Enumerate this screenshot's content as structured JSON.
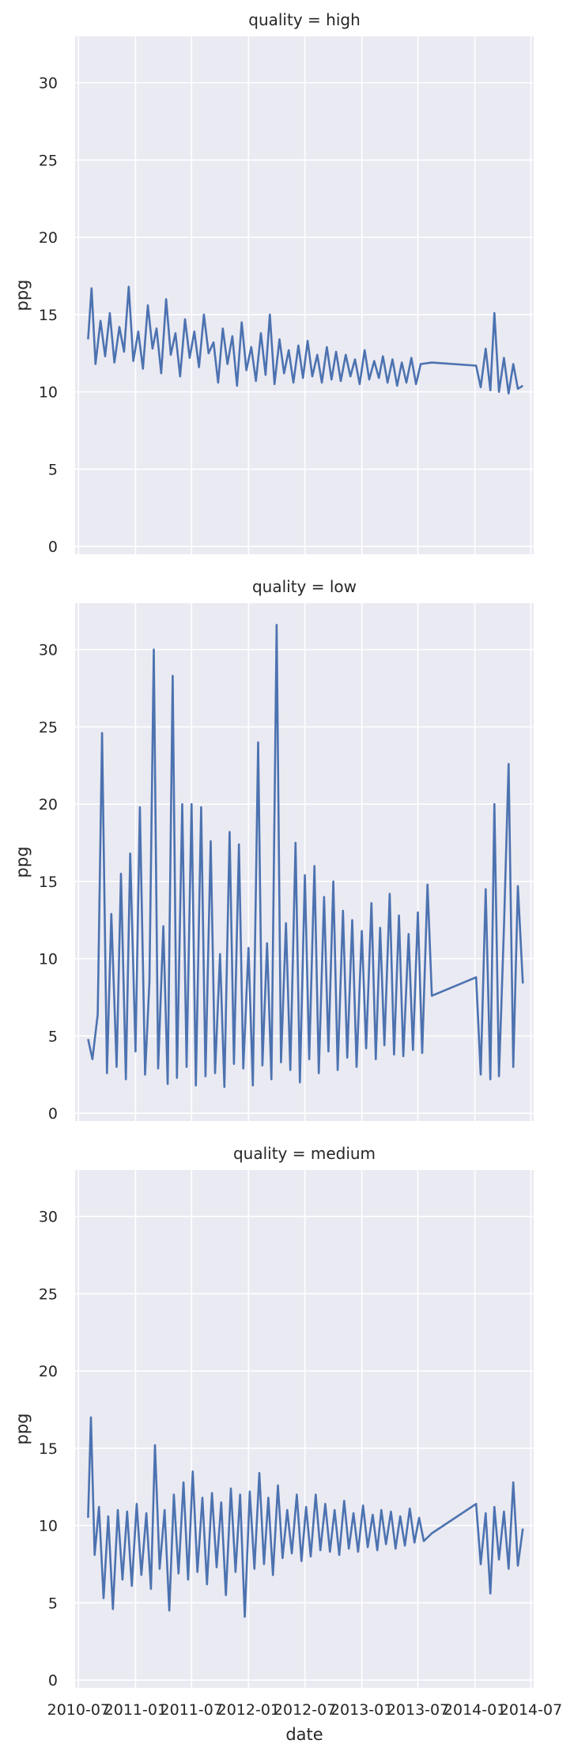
{
  "chart_data": [
    {
      "type": "line",
      "title": "quality = high",
      "xlabel": "",
      "ylabel": "ppg",
      "ylim": [
        -0.5,
        33
      ],
      "yticks": [
        0,
        5,
        10,
        15,
        20,
        25,
        30
      ],
      "xticks": [
        "2010-07",
        "2011-01",
        "2011-07",
        "2012-01",
        "2012-07",
        "2013-01",
        "2013-07",
        "2014-01",
        "2014-07"
      ],
      "x_range": [
        "2010-06-20",
        "2014-07-10"
      ],
      "color": "#4c72b0",
      "series": [
        {
          "x": [
            "2010-08-01",
            "2010-08-12",
            "2010-08-25",
            "2010-09-10",
            "2010-09-25",
            "2010-10-10",
            "2010-10-25",
            "2010-11-10",
            "2010-11-25",
            "2010-12-10",
            "2010-12-25",
            "2011-01-10",
            "2011-01-25",
            "2011-02-10",
            "2011-02-25",
            "2011-03-10",
            "2011-03-25",
            "2011-04-10",
            "2011-04-25",
            "2011-05-10",
            "2011-05-25",
            "2011-06-10",
            "2011-06-25",
            "2011-07-10",
            "2011-07-25",
            "2011-08-10",
            "2011-08-25",
            "2011-09-10",
            "2011-09-25",
            "2011-10-10",
            "2011-10-25",
            "2011-11-10",
            "2011-11-25",
            "2011-12-10",
            "2011-12-25",
            "2012-01-10",
            "2012-01-25",
            "2012-02-10",
            "2012-02-25",
            "2012-03-10",
            "2012-03-25",
            "2012-04-10",
            "2012-04-25",
            "2012-05-10",
            "2012-05-25",
            "2012-06-10",
            "2012-06-25",
            "2012-07-10",
            "2012-07-25",
            "2012-08-10",
            "2012-08-25",
            "2012-09-10",
            "2012-09-25",
            "2012-10-10",
            "2012-10-25",
            "2012-11-10",
            "2012-11-25",
            "2012-12-10",
            "2012-12-25",
            "2013-01-10",
            "2013-01-25",
            "2013-02-10",
            "2013-02-25",
            "2013-03-10",
            "2013-03-25",
            "2013-04-10",
            "2013-04-25",
            "2013-05-10",
            "2013-05-25",
            "2013-06-10",
            "2013-06-25",
            "2013-07-10",
            "2013-08-15",
            "2014-01-05",
            "2014-01-20",
            "2014-02-05",
            "2014-02-20",
            "2014-03-05",
            "2014-03-20",
            "2014-04-05",
            "2014-04-20",
            "2014-05-05",
            "2014-05-20",
            "2014-06-05"
          ],
          "y": [
            13.4,
            16.7,
            11.8,
            14.6,
            12.3,
            15.1,
            11.9,
            14.2,
            12.6,
            16.8,
            12.0,
            13.9,
            11.5,
            15.6,
            12.8,
            14.1,
            11.2,
            16.0,
            12.4,
            13.8,
            11.0,
            14.7,
            12.2,
            13.9,
            11.6,
            15.0,
            12.5,
            13.2,
            10.6,
            14.1,
            11.8,
            13.6,
            10.4,
            14.5,
            11.4,
            12.9,
            10.7,
            13.8,
            11.1,
            15.0,
            10.5,
            13.4,
            11.2,
            12.7,
            10.6,
            13.0,
            10.9,
            13.3,
            11.0,
            12.4,
            10.6,
            12.9,
            10.8,
            12.6,
            10.7,
            12.4,
            11.0,
            12.1,
            10.5,
            12.7,
            10.8,
            12.0,
            10.9,
            12.3,
            10.6,
            12.1,
            10.4,
            11.9,
            10.6,
            12.2,
            10.5,
            11.8,
            11.9,
            11.7,
            10.3,
            12.8,
            10.1,
            15.1,
            10.0,
            12.2,
            9.9,
            11.8,
            10.2,
            10.4
          ]
        }
      ]
    },
    {
      "type": "line",
      "title": "quality = low",
      "xlabel": "",
      "ylabel": "ppg",
      "ylim": [
        -0.5,
        33
      ],
      "yticks": [
        0,
        5,
        10,
        15,
        20,
        25,
        30
      ],
      "xticks": [
        "2010-07",
        "2011-01",
        "2011-07",
        "2012-01",
        "2012-07",
        "2013-01",
        "2013-07",
        "2014-01",
        "2014-07"
      ],
      "x_range": [
        "2010-06-20",
        "2014-07-10"
      ],
      "color": "#4c72b0",
      "series": [
        {
          "x": [
            "2010-08-01",
            "2010-08-15",
            "2010-09-01",
            "2010-09-15",
            "2010-10-01",
            "2010-10-15",
            "2010-11-01",
            "2010-11-15",
            "2010-12-01",
            "2010-12-15",
            "2011-01-01",
            "2011-01-15",
            "2011-02-01",
            "2011-02-15",
            "2011-03-01",
            "2011-03-15",
            "2011-04-01",
            "2011-04-15",
            "2011-05-01",
            "2011-05-15",
            "2011-06-01",
            "2011-06-15",
            "2011-07-01",
            "2011-07-15",
            "2011-08-01",
            "2011-08-15",
            "2011-09-01",
            "2011-09-15",
            "2011-10-01",
            "2011-10-15",
            "2011-11-01",
            "2011-11-15",
            "2011-12-01",
            "2011-12-15",
            "2012-01-01",
            "2012-01-15",
            "2012-02-01",
            "2012-02-15",
            "2012-03-01",
            "2012-03-15",
            "2012-04-01",
            "2012-04-15",
            "2012-05-01",
            "2012-05-15",
            "2012-06-01",
            "2012-06-15",
            "2012-07-01",
            "2012-07-15",
            "2012-08-01",
            "2012-08-15",
            "2012-09-01",
            "2012-09-15",
            "2012-10-01",
            "2012-10-15",
            "2012-11-01",
            "2012-11-15",
            "2012-12-01",
            "2012-12-15",
            "2013-01-01",
            "2013-01-15",
            "2013-02-01",
            "2013-02-15",
            "2013-03-01",
            "2013-03-15",
            "2013-04-01",
            "2013-04-15",
            "2013-05-01",
            "2013-05-15",
            "2013-06-01",
            "2013-06-15",
            "2013-07-01",
            "2013-07-15",
            "2013-08-01",
            "2013-08-15",
            "2014-01-05",
            "2014-01-20",
            "2014-02-05",
            "2014-02-20",
            "2014-03-05",
            "2014-03-20",
            "2014-04-05",
            "2014-04-20",
            "2014-05-05",
            "2014-05-20",
            "2014-06-05"
          ],
          "y": [
            4.8,
            3.5,
            6.4,
            24.6,
            2.6,
            12.9,
            3.0,
            15.5,
            2.2,
            16.8,
            4.0,
            19.8,
            2.5,
            8.5,
            30.0,
            2.9,
            12.1,
            1.9,
            28.3,
            2.3,
            20.0,
            3.0,
            20.0,
            1.8,
            19.8,
            2.4,
            17.6,
            2.6,
            10.3,
            1.7,
            18.2,
            3.2,
            17.4,
            2.9,
            10.7,
            1.8,
            24.0,
            3.1,
            11.0,
            2.2,
            31.6,
            3.3,
            12.3,
            2.8,
            17.5,
            2.0,
            15.4,
            3.5,
            16.0,
            2.6,
            14.0,
            4.0,
            15.0,
            2.8,
            13.1,
            3.6,
            12.5,
            3.0,
            11.8,
            4.2,
            13.6,
            3.5,
            12.0,
            4.4,
            14.2,
            3.8,
            12.8,
            3.7,
            11.6,
            4.1,
            13.0,
            3.9,
            14.8,
            7.6,
            8.8,
            2.5,
            14.5,
            2.2,
            20.0,
            2.4,
            12.0,
            22.6,
            3.0,
            14.7,
            8.4
          ]
        }
      ]
    },
    {
      "type": "line",
      "title": "quality = medium",
      "xlabel": "date",
      "ylabel": "ppg",
      "ylim": [
        -0.5,
        33
      ],
      "yticks": [
        0,
        5,
        10,
        15,
        20,
        25,
        30
      ],
      "xticks": [
        "2010-07",
        "2011-01",
        "2011-07",
        "2012-01",
        "2012-07",
        "2013-01",
        "2013-07",
        "2014-01",
        "2014-07"
      ],
      "x_range": [
        "2010-06-20",
        "2014-07-10"
      ],
      "color": "#4c72b0",
      "series": [
        {
          "x": [
            "2010-08-01",
            "2010-08-10",
            "2010-08-22",
            "2010-09-05",
            "2010-09-20",
            "2010-10-05",
            "2010-10-20",
            "2010-11-05",
            "2010-11-20",
            "2010-12-05",
            "2010-12-20",
            "2011-01-05",
            "2011-01-20",
            "2011-02-05",
            "2011-02-20",
            "2011-03-05",
            "2011-03-20",
            "2011-04-05",
            "2011-04-20",
            "2011-05-05",
            "2011-05-20",
            "2011-06-05",
            "2011-06-20",
            "2011-07-05",
            "2011-07-20",
            "2011-08-05",
            "2011-08-20",
            "2011-09-05",
            "2011-09-20",
            "2011-10-05",
            "2011-10-20",
            "2011-11-05",
            "2011-11-20",
            "2011-12-05",
            "2011-12-20",
            "2012-01-05",
            "2012-01-20",
            "2012-02-05",
            "2012-02-20",
            "2012-03-05",
            "2012-03-20",
            "2012-04-05",
            "2012-04-20",
            "2012-05-05",
            "2012-05-20",
            "2012-06-05",
            "2012-06-20",
            "2012-07-05",
            "2012-07-20",
            "2012-08-05",
            "2012-08-20",
            "2012-09-05",
            "2012-09-20",
            "2012-10-05",
            "2012-10-20",
            "2012-11-05",
            "2012-11-20",
            "2012-12-05",
            "2012-12-20",
            "2013-01-05",
            "2013-01-20",
            "2013-02-05",
            "2013-02-20",
            "2013-03-05",
            "2013-03-20",
            "2013-04-05",
            "2013-04-20",
            "2013-05-05",
            "2013-05-20",
            "2013-06-05",
            "2013-06-20",
            "2013-07-05",
            "2013-07-20",
            "2013-08-15",
            "2014-01-05",
            "2014-01-20",
            "2014-02-05",
            "2014-02-20",
            "2014-03-05",
            "2014-03-20",
            "2014-04-05",
            "2014-04-20",
            "2014-05-05",
            "2014-05-20",
            "2014-06-05"
          ],
          "y": [
            10.5,
            17.0,
            8.1,
            11.2,
            5.3,
            10.6,
            4.6,
            11.0,
            6.5,
            10.9,
            6.1,
            11.4,
            6.8,
            10.8,
            5.9,
            15.2,
            7.2,
            11.0,
            4.5,
            12.0,
            6.9,
            12.8,
            6.5,
            13.5,
            7.0,
            11.8,
            6.2,
            12.1,
            7.3,
            11.5,
            5.5,
            12.4,
            7.0,
            12.0,
            4.1,
            12.2,
            7.2,
            13.4,
            7.5,
            11.8,
            6.8,
            12.6,
            7.9,
            11.0,
            8.2,
            12.0,
            7.7,
            11.2,
            8.0,
            12.0,
            8.4,
            11.4,
            8.3,
            11.0,
            8.1,
            11.6,
            8.5,
            10.8,
            8.3,
            11.3,
            8.6,
            10.7,
            8.4,
            11.0,
            8.8,
            10.9,
            8.5,
            10.6,
            8.7,
            11.1,
            8.9,
            10.5,
            9.0,
            9.5,
            11.4,
            7.5,
            10.8,
            5.6,
            11.2,
            7.8,
            10.9,
            7.2,
            12.8,
            7.4,
            9.8
          ]
        }
      ]
    }
  ]
}
